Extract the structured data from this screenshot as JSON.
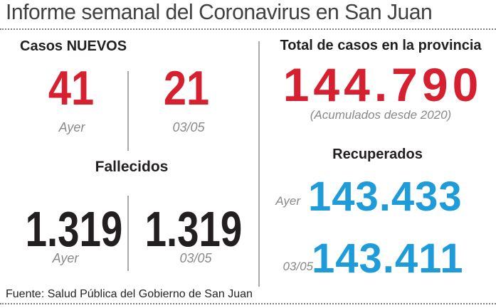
{
  "header": {
    "title": "Informe semanal del Coronavirus en San Juan"
  },
  "new_cases": {
    "heading": "Casos NUEVOS",
    "items": [
      {
        "value": "41",
        "label": "Ayer"
      },
      {
        "value": "21",
        "label": "03/05"
      }
    ]
  },
  "deaths": {
    "heading": "Fallecidos",
    "items": [
      {
        "value": "1.319",
        "label": "Ayer"
      },
      {
        "value": "1.319",
        "label": "03/05"
      }
    ]
  },
  "total_cases": {
    "heading": "Total de casos en la provincia",
    "value": "144.790",
    "note": "(Acumulados desde 2020)"
  },
  "recovered": {
    "heading": "Recuperados",
    "rows": [
      {
        "label": "Ayer",
        "value": "143.433"
      },
      {
        "label": "03/05",
        "value": "143.411"
      }
    ]
  },
  "footer": {
    "source": "Fuente: Salud Pública del Gobierno de San Juan"
  },
  "colors": {
    "accent_red": "#d7202f",
    "accent_blue": "#1e9cd9",
    "ink": "#231f20",
    "label_gray": "#87888a",
    "divider_gray": "#a7a9ac"
  },
  "chart_data": {
    "type": "table",
    "title": "Informe semanal del Coronavirus en San Juan",
    "categories": [
      "Ayer",
      "03/05"
    ],
    "series": [
      {
        "name": "Casos NUEVOS",
        "values": [
          41,
          21
        ]
      },
      {
        "name": "Fallecidos",
        "values": [
          1319,
          1319
        ]
      },
      {
        "name": "Recuperados",
        "values": [
          143433,
          143411
        ]
      }
    ],
    "totals": {
      "name": "Total de casos en la provincia",
      "value": 144790,
      "note": "(Acumulados desde 2020)"
    },
    "source": "Fuente: Salud Pública del Gobierno de San Juan"
  }
}
